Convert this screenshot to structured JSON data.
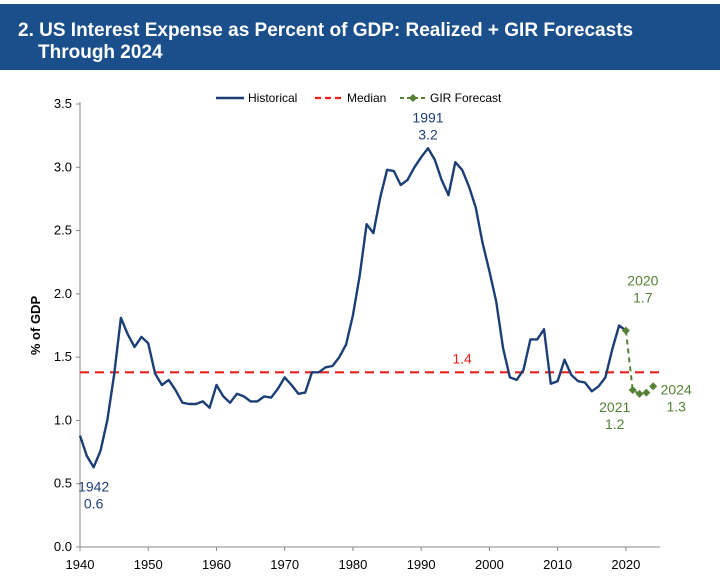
{
  "chart_data": {
    "type": "line",
    "title_line1": "2. US Interest Expense as Percent of GDP: Realized + GIR Forecasts",
    "title_line2": "Through 2024",
    "xlabel": "",
    "ylabel": "% of GDP",
    "xlim": [
      1940,
      2025
    ],
    "ylim": [
      0.0,
      3.5
    ],
    "x_ticks": [
      "1940",
      "1950",
      "1960",
      "1970",
      "1980",
      "1990",
      "2000",
      "2010",
      "2020"
    ],
    "y_ticks": [
      "0.0",
      "0.5",
      "1.0",
      "1.5",
      "2.0",
      "2.5",
      "3.0",
      "3.5"
    ],
    "grid": false,
    "legend_position": "top-center",
    "legend": [
      "Historical",
      "Median",
      "GIR Forecast"
    ],
    "colors": {
      "historical": "#1b3f75",
      "median": "#e8211c",
      "forecast": "#548235"
    },
    "series": [
      {
        "name": "Historical",
        "style": "solid",
        "points": [
          [
            1940,
            0.88
          ],
          [
            1941,
            0.72
          ],
          [
            1942,
            0.63
          ],
          [
            1943,
            0.76
          ],
          [
            1944,
            1.0
          ],
          [
            1945,
            1.36
          ],
          [
            1946,
            1.81
          ],
          [
            1947,
            1.68
          ],
          [
            1948,
            1.58
          ],
          [
            1949,
            1.66
          ],
          [
            1950,
            1.61
          ],
          [
            1951,
            1.37
          ],
          [
            1952,
            1.28
          ],
          [
            1953,
            1.32
          ],
          [
            1954,
            1.24
          ],
          [
            1955,
            1.14
          ],
          [
            1956,
            1.13
          ],
          [
            1957,
            1.13
          ],
          [
            1958,
            1.15
          ],
          [
            1959,
            1.1
          ],
          [
            1960,
            1.28
          ],
          [
            1961,
            1.19
          ],
          [
            1962,
            1.14
          ],
          [
            1963,
            1.21
          ],
          [
            1964,
            1.19
          ],
          [
            1965,
            1.15
          ],
          [
            1966,
            1.15
          ],
          [
            1967,
            1.19
          ],
          [
            1968,
            1.18
          ],
          [
            1969,
            1.25
          ],
          [
            1970,
            1.34
          ],
          [
            1971,
            1.28
          ],
          [
            1972,
            1.21
          ],
          [
            1973,
            1.22
          ],
          [
            1974,
            1.38
          ],
          [
            1975,
            1.38
          ],
          [
            1976,
            1.42
          ],
          [
            1977,
            1.43
          ],
          [
            1978,
            1.5
          ],
          [
            1979,
            1.6
          ],
          [
            1980,
            1.83
          ],
          [
            1981,
            2.15
          ],
          [
            1982,
            2.55
          ],
          [
            1983,
            2.48
          ],
          [
            1984,
            2.76
          ],
          [
            1985,
            2.98
          ],
          [
            1986,
            2.97
          ],
          [
            1987,
            2.86
          ],
          [
            1988,
            2.9
          ],
          [
            1989,
            3.0
          ],
          [
            1990,
            3.08
          ],
          [
            1991,
            3.15
          ],
          [
            1992,
            3.06
          ],
          [
            1993,
            2.9
          ],
          [
            1994,
            2.78
          ],
          [
            1995,
            3.04
          ],
          [
            1996,
            2.98
          ],
          [
            1997,
            2.85
          ],
          [
            1998,
            2.68
          ],
          [
            1999,
            2.4
          ],
          [
            2000,
            2.18
          ],
          [
            2001,
            1.94
          ],
          [
            2002,
            1.57
          ],
          [
            2003,
            1.34
          ],
          [
            2004,
            1.32
          ],
          [
            2005,
            1.4
          ],
          [
            2006,
            1.64
          ],
          [
            2007,
            1.64
          ],
          [
            2008,
            1.72
          ],
          [
            2009,
            1.29
          ],
          [
            2010,
            1.31
          ],
          [
            2011,
            1.48
          ],
          [
            2012,
            1.36
          ],
          [
            2013,
            1.31
          ],
          [
            2014,
            1.3
          ],
          [
            2015,
            1.23
          ],
          [
            2016,
            1.27
          ],
          [
            2017,
            1.34
          ],
          [
            2018,
            1.56
          ],
          [
            2019,
            1.75
          ],
          [
            2020,
            1.71
          ]
        ]
      },
      {
        "name": "Median",
        "style": "dashed",
        "value": 1.38
      },
      {
        "name": "GIR Forecast",
        "style": "dashed-diamond",
        "points": [
          [
            2020,
            1.71
          ],
          [
            2021,
            1.24
          ],
          [
            2022,
            1.21
          ],
          [
            2023,
            1.22
          ],
          [
            2024,
            1.27
          ]
        ]
      }
    ],
    "annotations": [
      {
        "id": "ann-1942",
        "year": "1942",
        "value": "0.6",
        "x": 1942,
        "y": 0.63,
        "color_key": "historical"
      },
      {
        "id": "ann-1991",
        "year": "1991",
        "value": "3.2",
        "x": 1991,
        "y": 3.15,
        "color_key": "historical"
      },
      {
        "id": "ann-median",
        "value": "1.4",
        "x": 1996,
        "y": 1.38,
        "color_key": "median"
      },
      {
        "id": "ann-2020",
        "year": "2020",
        "value": "1.7",
        "x": 2020,
        "y": 1.71,
        "color_key": "forecast"
      },
      {
        "id": "ann-2021",
        "year": "2021",
        "value": "1.2",
        "x": 2021,
        "y": 1.24,
        "color_key": "forecast"
      },
      {
        "id": "ann-2024",
        "year": "2024",
        "value": "1.3",
        "x": 2024,
        "y": 1.27,
        "color_key": "forecast"
      }
    ]
  }
}
